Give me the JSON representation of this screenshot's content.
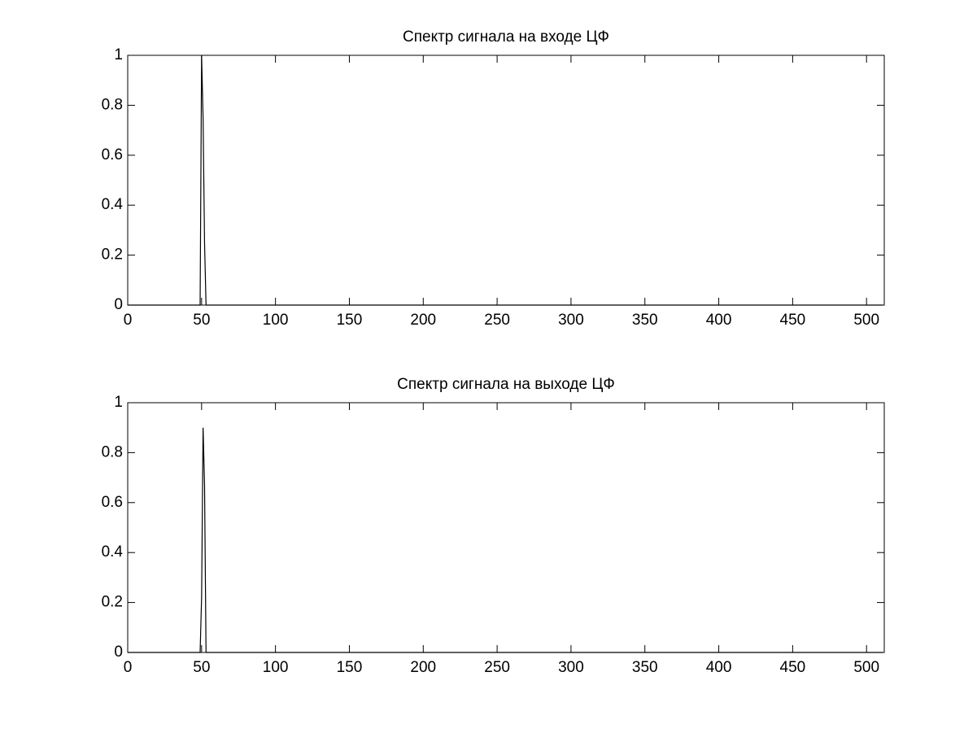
{
  "chart_data": [
    {
      "type": "line",
      "title": "Спектр сигнала на входе ЦФ",
      "x": [
        0,
        49,
        50,
        51,
        52,
        53,
        511
      ],
      "values": [
        0,
        0,
        1,
        0.75,
        0.25,
        0,
        0
      ],
      "color": "#000000",
      "xlim": [
        0,
        512
      ],
      "xticks": [
        0,
        50,
        100,
        150,
        200,
        250,
        300,
        350,
        400,
        450,
        500
      ],
      "ylim": [
        0,
        1
      ],
      "yticks": [
        0,
        0.2,
        0.4,
        0.6,
        0.8,
        1
      ]
    },
    {
      "type": "line",
      "title": "Спектр сигнала на выходе ЦФ",
      "x": [
        0,
        49,
        50,
        51,
        52,
        53,
        511
      ],
      "values": [
        0,
        0,
        0.22,
        0.9,
        0.67,
        0,
        0
      ],
      "color": "#000000",
      "xlim": [
        0,
        512
      ],
      "xticks": [
        0,
        50,
        100,
        150,
        200,
        250,
        300,
        350,
        400,
        450,
        500
      ],
      "ylim": [
        0,
        1
      ],
      "yticks": [
        0,
        0.2,
        0.4,
        0.6,
        0.8,
        1
      ]
    }
  ]
}
